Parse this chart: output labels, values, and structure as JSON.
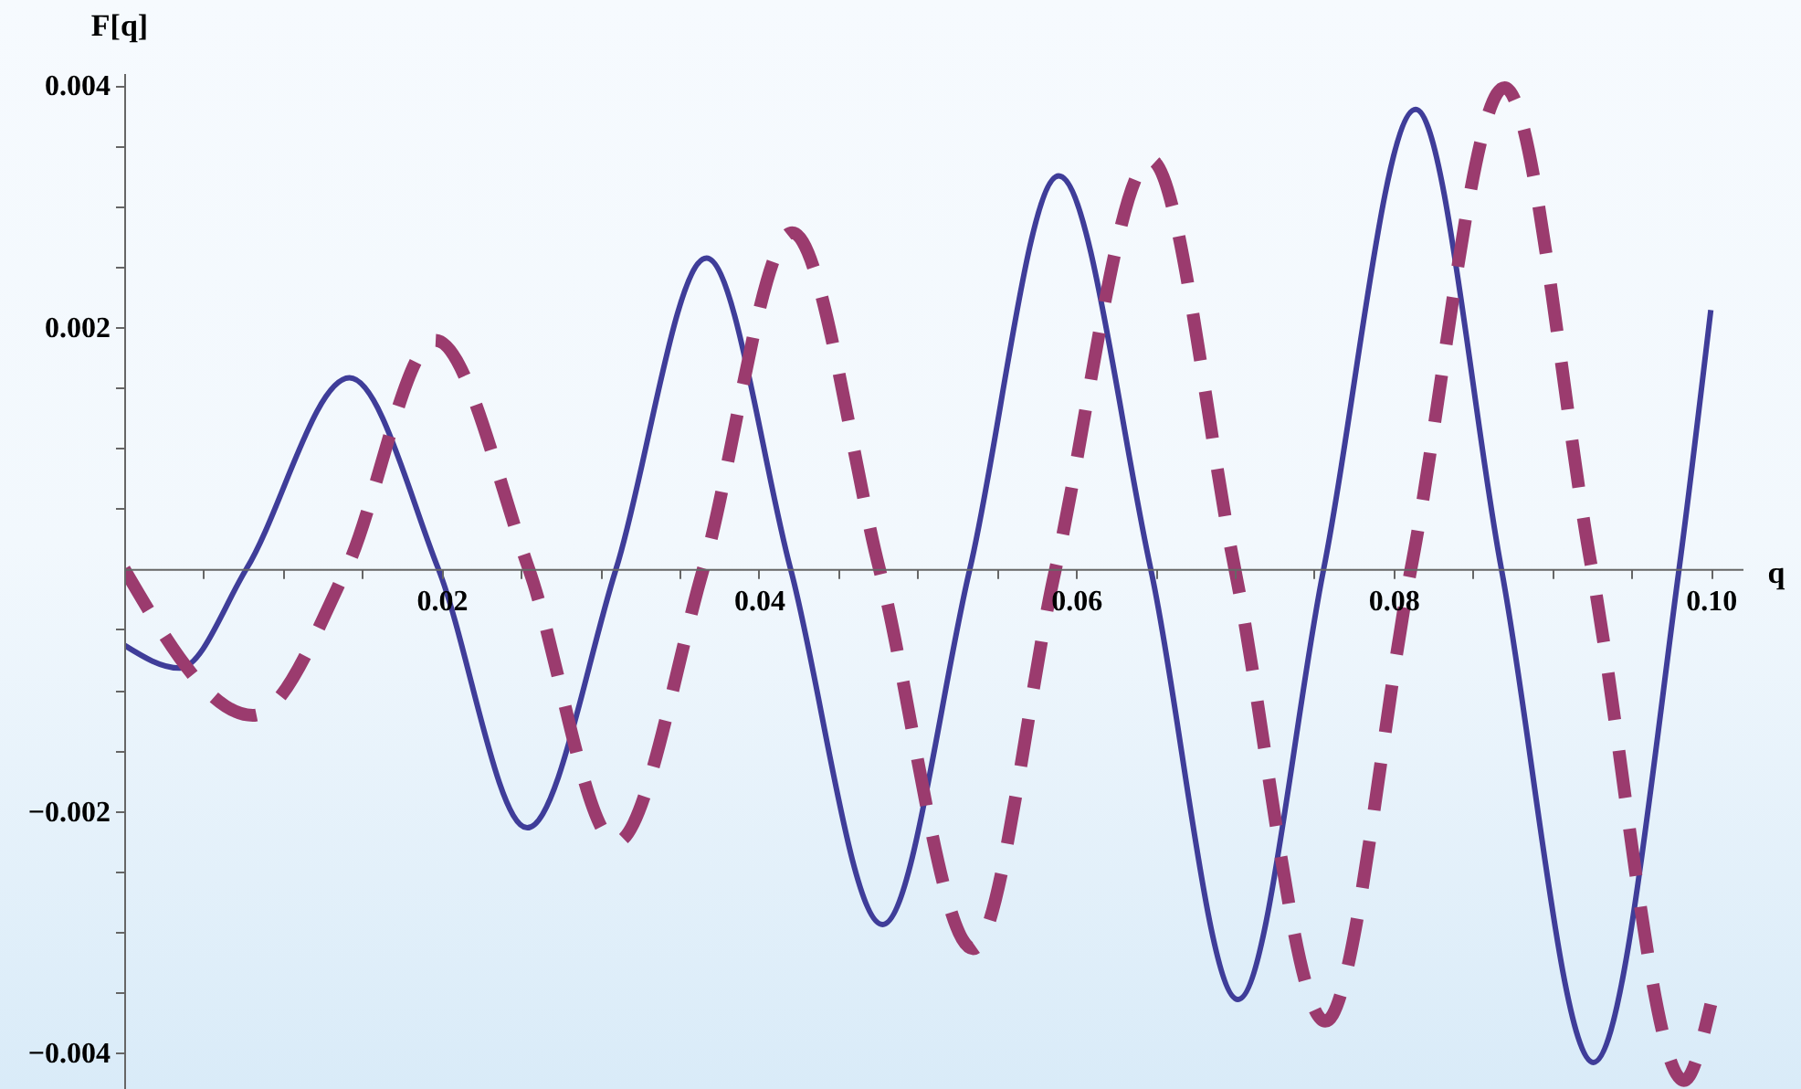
{
  "chart_data": {
    "type": "line",
    "xlabel": "q",
    "ylabel": "F[q]",
    "xlim": [
      0,
      0.102
    ],
    "ylim": [
      -0.0043,
      0.0041
    ],
    "xticks": [
      {
        "value": 0.005,
        "label": null
      },
      {
        "value": 0.01,
        "label": null
      },
      {
        "value": 0.015,
        "label": null
      },
      0.02,
      {
        "value": 0.025,
        "label": null
      },
      {
        "value": 0.03,
        "label": null
      },
      {
        "value": 0.035,
        "label": null
      },
      0.04,
      {
        "value": 0.045,
        "label": null
      },
      {
        "value": 0.05,
        "label": null
      },
      {
        "value": 0.055,
        "label": null
      },
      0.06,
      {
        "value": 0.065,
        "label": null
      },
      {
        "value": 0.07,
        "label": null
      },
      {
        "value": 0.075,
        "label": null
      },
      0.08,
      {
        "value": 0.085,
        "label": null
      },
      {
        "value": 0.09,
        "label": null
      },
      {
        "value": 0.095,
        "label": null
      },
      {
        "value": 0.1,
        "label": "0.10"
      }
    ],
    "yticks": [
      {
        "value": -0.004,
        "label": "−0.004"
      },
      {
        "value": -0.0035,
        "label": null
      },
      {
        "value": -0.003,
        "label": null
      },
      {
        "value": -0.0025,
        "label": null
      },
      {
        "value": -0.002,
        "label": "−0.002"
      },
      {
        "value": -0.0015,
        "label": null
      },
      {
        "value": -0.001,
        "label": null
      },
      {
        "value": -0.0005,
        "label": null
      },
      {
        "value": 0.0005,
        "label": null
      },
      {
        "value": 0.001,
        "label": null
      },
      {
        "value": 0.0015,
        "label": null
      },
      0.002,
      {
        "value": 0.0025,
        "label": null
      },
      {
        "value": 0.003,
        "label": null
      },
      {
        "value": 0.0035,
        "label": null
      },
      0.004
    ],
    "grid": false,
    "marker": "none",
    "series": [
      {
        "color": "#3f3d99",
        "line_style": "solid",
        "x": [
          0,
          0.0035,
          0.0077,
          0.0142,
          0.0198,
          0.0254,
          0.031,
          0.0367,
          0.042,
          0.0478,
          0.0533,
          0.0589,
          0.0647,
          0.0702,
          0.0756,
          0.0814,
          0.0868,
          0.0926,
          0.098,
          0.1
        ],
        "values": [
          -0.00063,
          -0.00082,
          0,
          0.00158,
          0,
          -0.00214,
          0,
          0.00257,
          0,
          -0.00294,
          0,
          0.00325,
          0,
          -0.00356,
          0,
          0.0038,
          0,
          -0.00408,
          0,
          0.00214
        ]
      },
      {
        "color": "#9b3b6e",
        "line_style": "dashed",
        "x": [
          0,
          0.0081,
          0.014,
          0.0196,
          0.0255,
          0.031,
          0.0365,
          0.0421,
          0.0476,
          0.0535,
          0.0587,
          0.0647,
          0.07,
          0.0757,
          0.0811,
          0.087,
          0.0925,
          0.0983,
          0.1
        ],
        "values": [
          0,
          -0.00121,
          0,
          0.00189,
          0,
          -0.00226,
          0,
          0.00278,
          0,
          -0.00314,
          0,
          0.00338,
          0,
          -0.00374,
          0,
          0.00398,
          0,
          -0.00423,
          -0.0036
        ]
      }
    ]
  }
}
